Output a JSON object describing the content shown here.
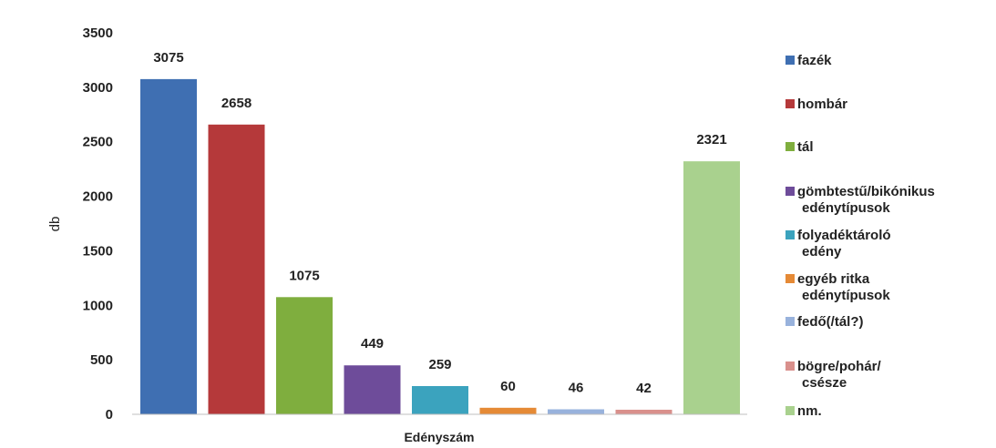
{
  "chart_data": {
    "type": "bar",
    "xlabel": "Edényszám",
    "ylabel": "db",
    "ylim": [
      0,
      3500
    ],
    "yticks": [
      0,
      500,
      1000,
      1500,
      2000,
      2500,
      3000,
      3500
    ],
    "grid": false,
    "legend_position": "right",
    "series": [
      {
        "name": "fazék",
        "legend_lines": [
          "fazék"
        ],
        "value": 3075,
        "color": "#3F6FB2"
      },
      {
        "name": "hombár",
        "legend_lines": [
          "hombár"
        ],
        "value": 2658,
        "color": "#B5393A"
      },
      {
        "name": "tál",
        "legend_lines": [
          "tál"
        ],
        "value": 1075,
        "color": "#7FAE3E"
      },
      {
        "name": "gömbtestű/bikónikus edénytípusok",
        "legend_lines": [
          "gömbtestű/bikónikus",
          "edénytípusok"
        ],
        "value": 449,
        "color": "#6E4C9A"
      },
      {
        "name": "folyadéktároló edény",
        "legend_lines": [
          "folyadéktároló",
          "edény"
        ],
        "value": 259,
        "color": "#3BA3BE"
      },
      {
        "name": "egyéb ritka edénytípusok",
        "legend_lines": [
          "egyéb ritka",
          "edénytípusok"
        ],
        "value": 60,
        "color": "#E58A36"
      },
      {
        "name": "fedő(/tál?)",
        "legend_lines": [
          "fedő(/tál?)"
        ],
        "value": 46,
        "color": "#98B2DC"
      },
      {
        "name": "bögre/pohár/csésze",
        "legend_lines": [
          "bögre/pohár/",
          "csésze"
        ],
        "value": 42,
        "color": "#D9908C"
      },
      {
        "name": "nm.",
        "legend_lines": [
          "nm."
        ],
        "value": 2321,
        "color": "#A9D18E"
      }
    ]
  }
}
